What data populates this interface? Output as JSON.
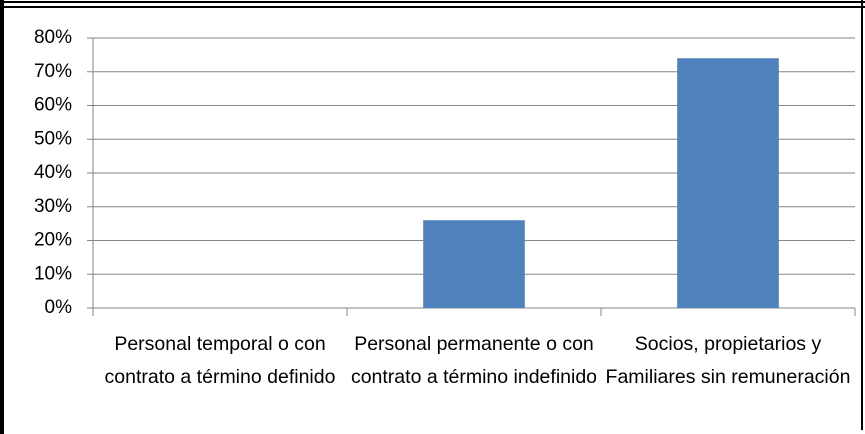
{
  "chart_data": {
    "type": "bar",
    "categories": [
      "Personal temporal o con contrato a término definido",
      "Personal permanente o con contrato a término indefinido",
      "Socios, propietarios y Familiares sin remuneración"
    ],
    "values": [
      0,
      26,
      74
    ],
    "color": "#4f81bd",
    "ylim": [
      0,
      80
    ],
    "yticks": [
      {
        "value": 0,
        "label": "0%"
      },
      {
        "value": 10,
        "label": "10%"
      },
      {
        "value": 20,
        "label": "20%"
      },
      {
        "value": 30,
        "label": "30%"
      },
      {
        "value": 40,
        "label": "40%"
      },
      {
        "value": 50,
        "label": "50%"
      },
      {
        "value": 60,
        "label": "60%"
      },
      {
        "value": 70,
        "label": "70%"
      },
      {
        "value": 80,
        "label": "80%"
      }
    ],
    "grid": true
  }
}
